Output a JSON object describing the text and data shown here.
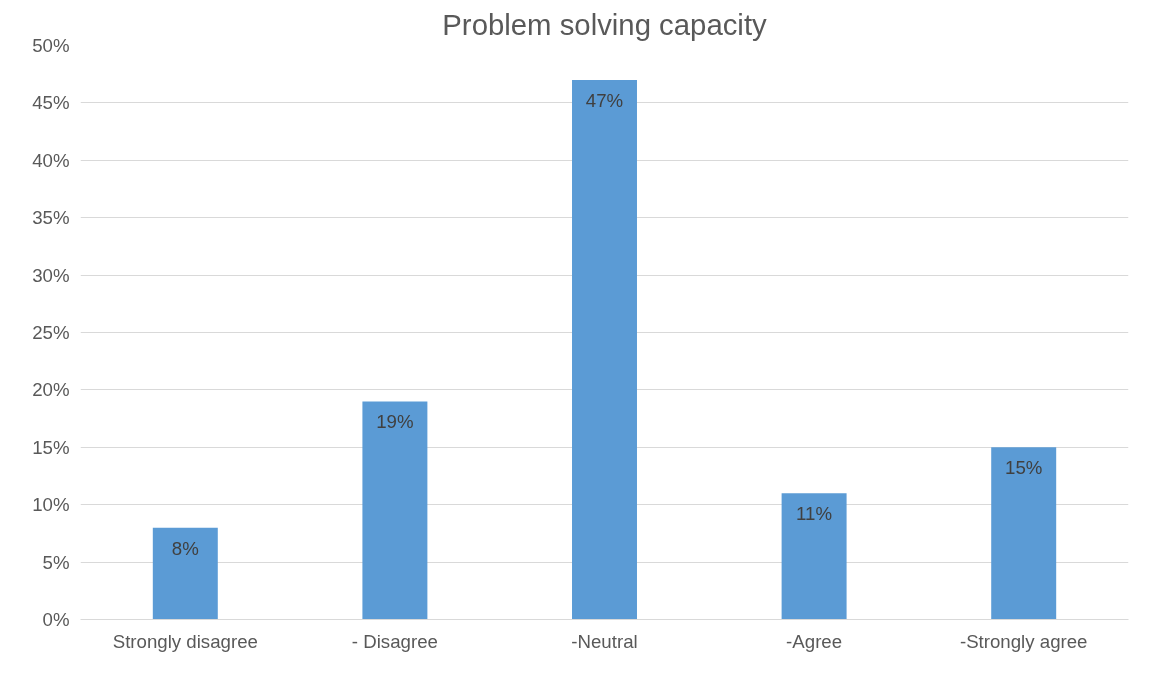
{
  "chart_data": {
    "type": "bar",
    "title": "Problem solving capacity",
    "categories": [
      "Strongly disagree",
      "- Disagree",
      "-Neutral",
      "-Agree",
      "-Strongly agree"
    ],
    "values": [
      8,
      19,
      47,
      11,
      15
    ],
    "value_labels": [
      "8%",
      "19%",
      "47%",
      "11%",
      "15%"
    ],
    "color": "#5b9bd5",
    "ylim": [
      0,
      50
    ],
    "yticks": [
      {
        "value": 0,
        "label": "0%"
      },
      {
        "value": 5,
        "label": "5%"
      },
      {
        "value": 10,
        "label": "10%"
      },
      {
        "value": 15,
        "label": "15%"
      },
      {
        "value": 20,
        "label": "20%"
      },
      {
        "value": 25,
        "label": "25%"
      },
      {
        "value": 30,
        "label": "30%"
      },
      {
        "value": 35,
        "label": "35%"
      },
      {
        "value": 40,
        "label": "40%"
      },
      {
        "value": 45,
        "label": "45%"
      },
      {
        "value": 50,
        "label": "50%"
      }
    ],
    "grid": "y"
  }
}
